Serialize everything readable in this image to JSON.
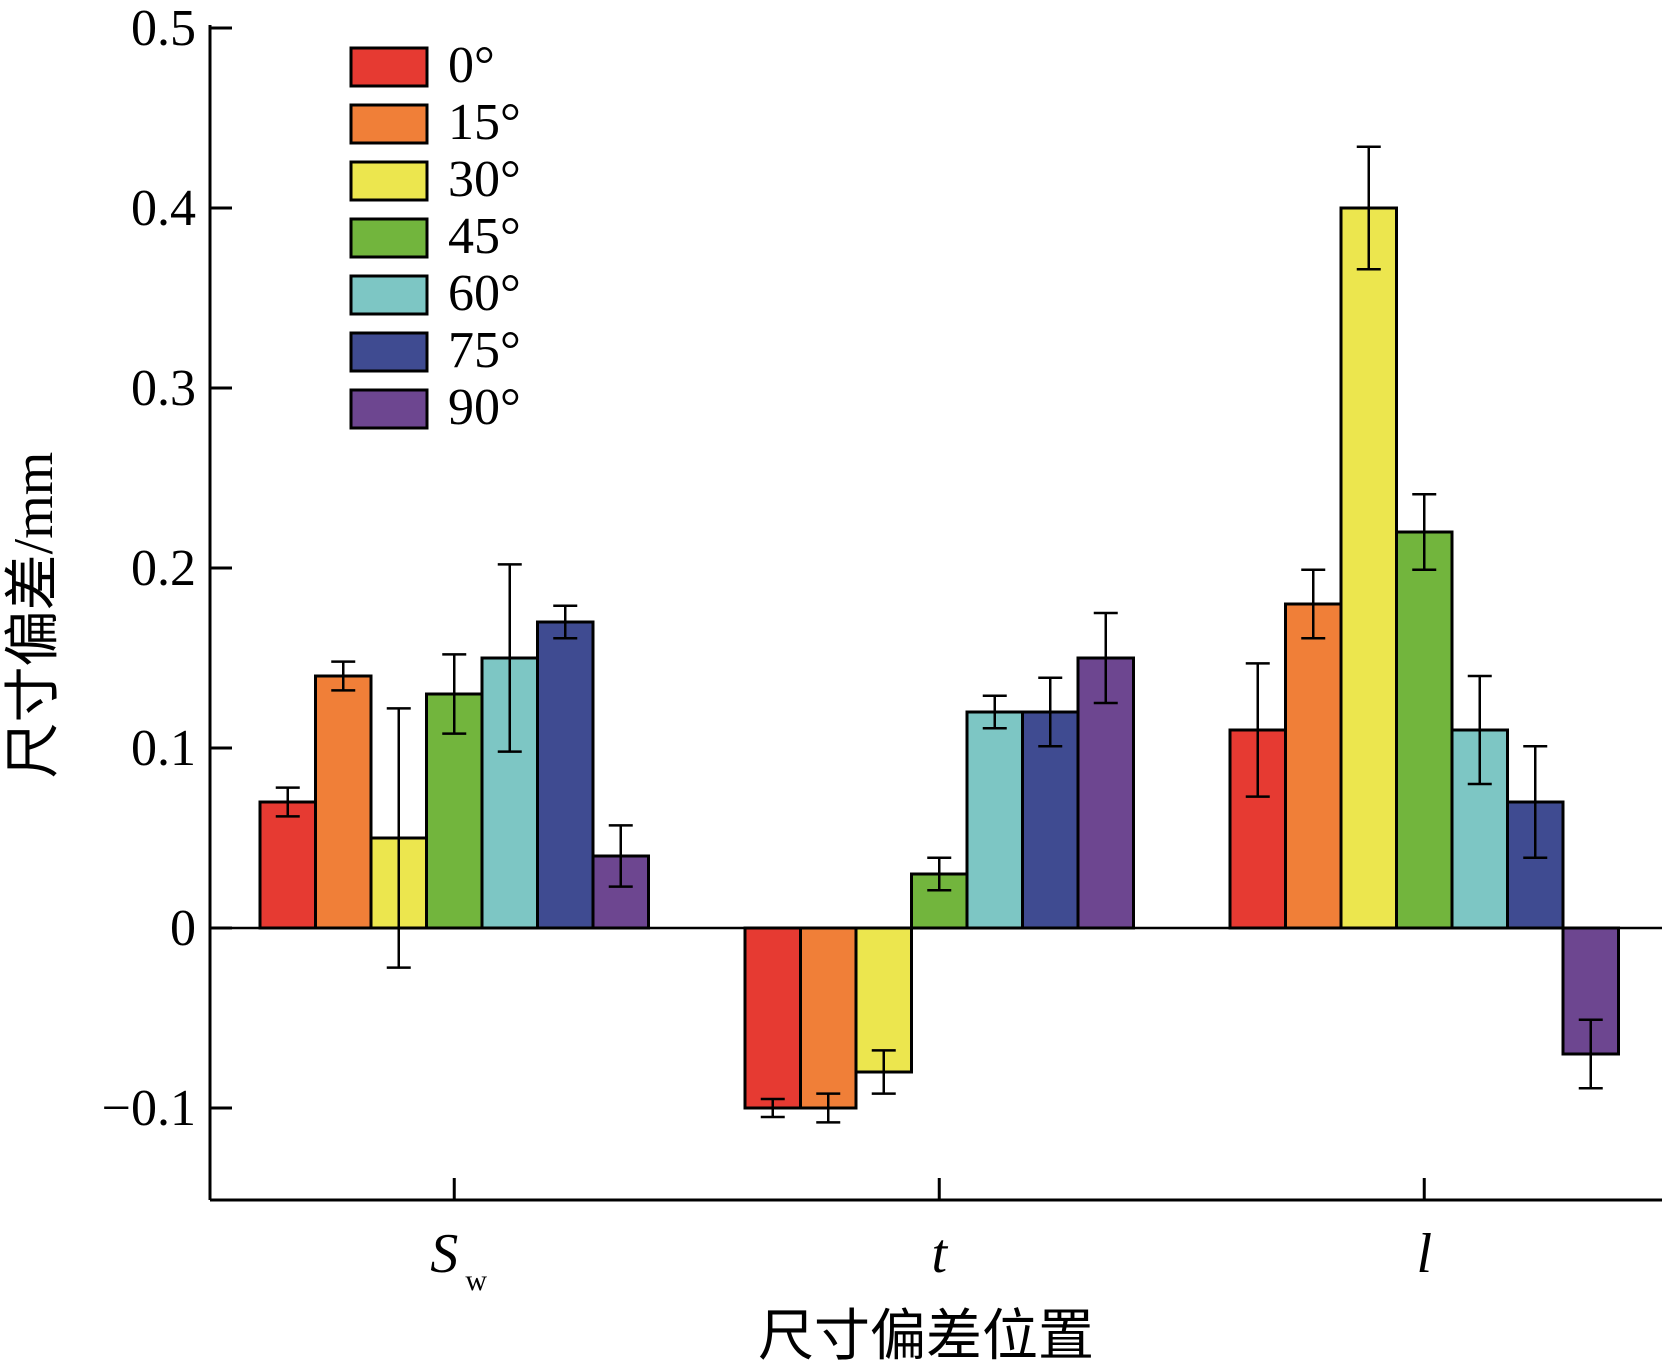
{
  "chart_data": {
    "type": "bar",
    "title": "",
    "xlabel": "尺寸偏差位置",
    "ylabel": "尺寸偏差/mm",
    "ylim": [
      -0.15,
      0.5
    ],
    "yticks": [
      -0.1,
      0,
      0.1,
      0.2,
      0.3,
      0.4,
      0.5
    ],
    "ytick_labels": [
      "−0.1",
      "0",
      "0.1",
      "0.2",
      "0.3",
      "0.4",
      "0.5"
    ],
    "categories": [
      {
        "main": "S",
        "sub": "w"
      },
      {
        "main": "t",
        "sub": ""
      },
      {
        "main": "l",
        "sub": ""
      }
    ],
    "legend_position": "top-left",
    "grid": false,
    "series": [
      {
        "name": "0°",
        "color": "#e63a32",
        "values": [
          0.07,
          -0.1,
          0.11
        ],
        "errors": [
          0.008,
          0.005,
          0.037
        ]
      },
      {
        "name": "15°",
        "color": "#f07f38",
        "values": [
          0.14,
          -0.1,
          0.18
        ],
        "errors": [
          0.008,
          0.008,
          0.019
        ]
      },
      {
        "name": "30°",
        "color": "#ece64e",
        "values": [
          0.05,
          -0.08,
          0.4
        ],
        "errors": [
          0.072,
          0.012,
          0.034
        ]
      },
      {
        "name": "45°",
        "color": "#72b53d",
        "values": [
          0.13,
          0.03,
          0.22
        ],
        "errors": [
          0.022,
          0.009,
          0.021
        ]
      },
      {
        "name": "60°",
        "color": "#7dc6c4",
        "values": [
          0.15,
          0.12,
          0.11
        ],
        "errors": [
          0.052,
          0.009,
          0.03
        ]
      },
      {
        "name": "75°",
        "color": "#3f4b91",
        "values": [
          0.17,
          0.12,
          0.07
        ],
        "errors": [
          0.009,
          0.019,
          0.031
        ]
      },
      {
        "name": "90°",
        "color": "#6d4690",
        "values": [
          0.04,
          0.15,
          -0.07
        ],
        "errors": [
          0.017,
          0.025,
          0.019
        ]
      }
    ]
  }
}
